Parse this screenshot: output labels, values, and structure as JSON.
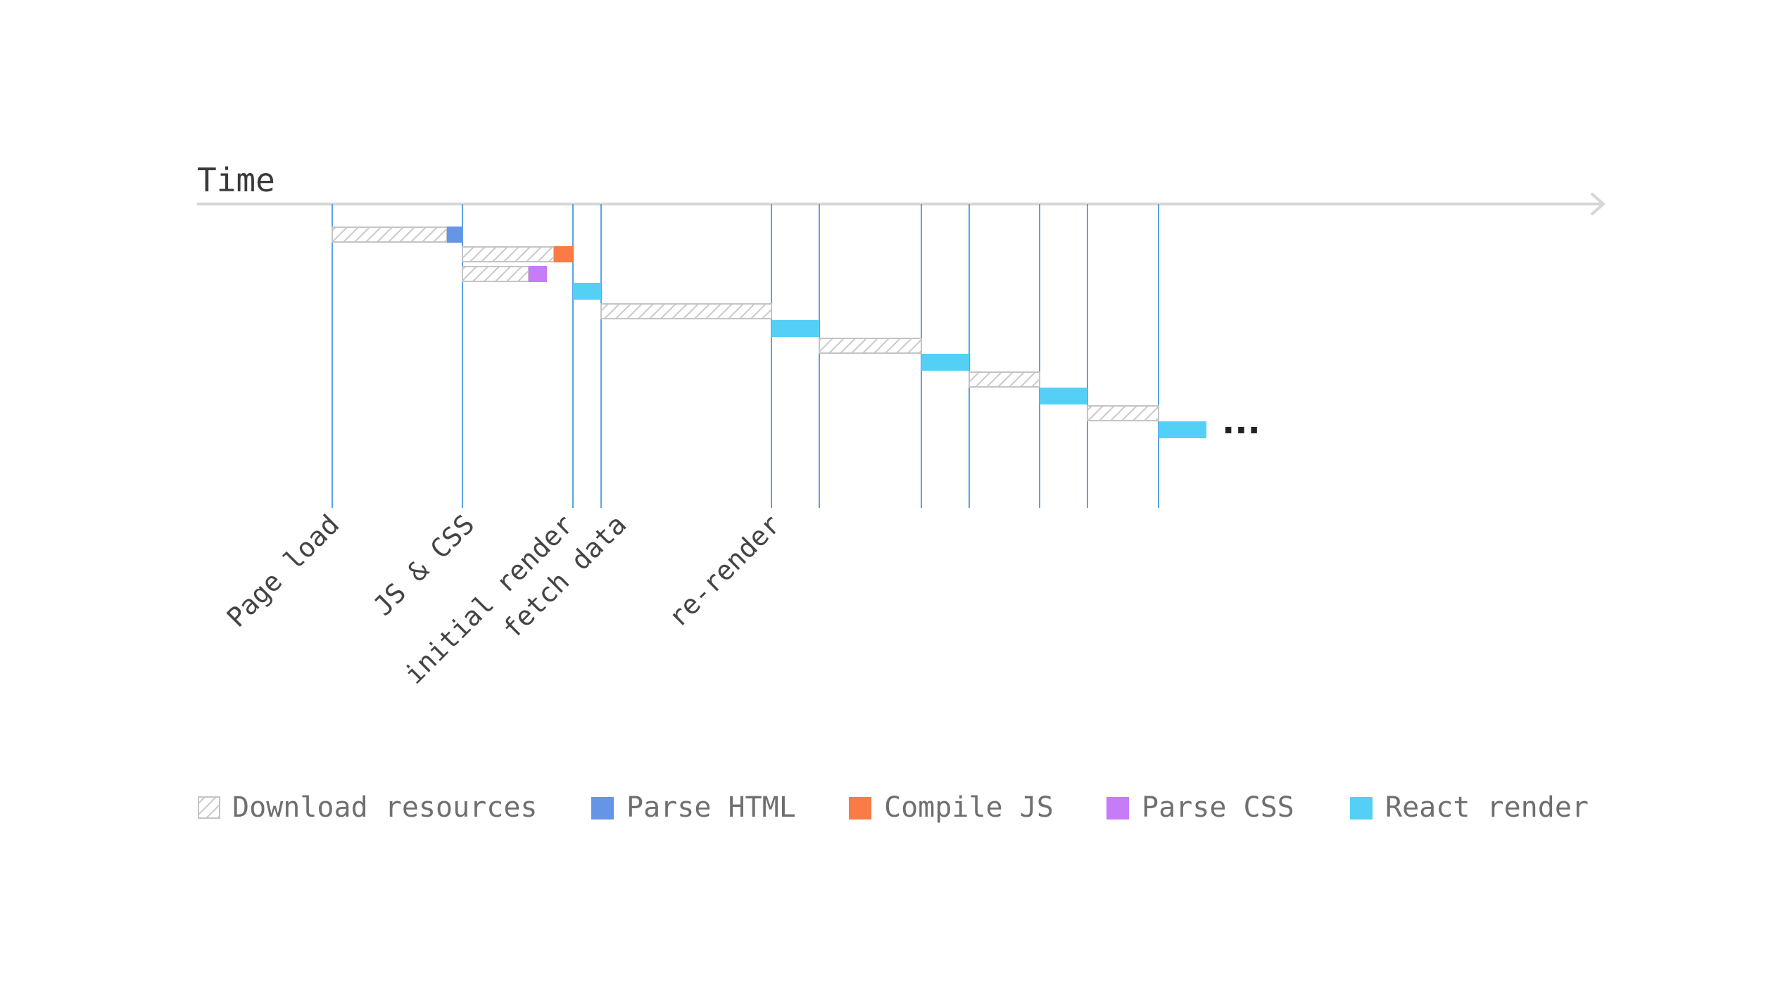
{
  "title": "Time",
  "ellipsis": "...",
  "colors": {
    "guide_line": "#5aa3e6",
    "axis": "#d6d6d6",
    "download_stroke": "#c4c4c4",
    "download_hatch": "#c9c9c9",
    "parse_html": "#6695e8",
    "compile_js": "#f97b45",
    "parse_css": "#c77cf7",
    "react_render": "#54d0f6"
  },
  "milestones": [
    {
      "id": "page-load",
      "label": "Page load"
    },
    {
      "id": "js-css",
      "label": "JS & CSS"
    },
    {
      "id": "initial-render",
      "label": "initial render"
    },
    {
      "id": "fetch-data",
      "label": "fetch data"
    },
    {
      "id": "re-render",
      "label": "re-render"
    }
  ],
  "legend": [
    {
      "id": "download",
      "label": "Download resources",
      "color": "hatch"
    },
    {
      "id": "parse-html",
      "label": "Parse HTML",
      "color": "#6695e8"
    },
    {
      "id": "compile-js",
      "label": "Compile JS",
      "color": "#f97b45"
    },
    {
      "id": "parse-css",
      "label": "Parse CSS",
      "color": "#c77cf7"
    },
    {
      "id": "react-render",
      "label": "React render",
      "color": "#54d0f6"
    }
  ]
}
